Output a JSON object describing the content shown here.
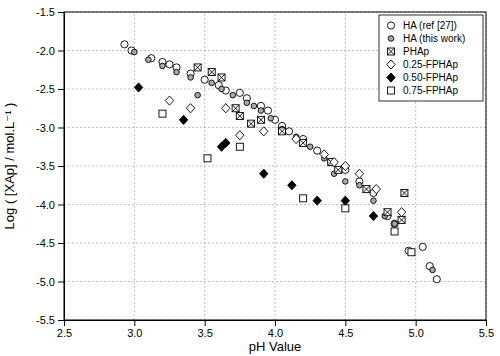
{
  "chart_data": {
    "type": "scatter",
    "x_label": "pH Value",
    "y_label": "Log ( [XAp] / mol.L⁻¹ )",
    "xlim": [
      2.5,
      5.5
    ],
    "ylim": [
      -5.5,
      -1.5
    ],
    "xticks": [
      2.5,
      {
        "value": 3,
        "label": "3.0"
      },
      3.5,
      {
        "value": 4,
        "label": "4.0"
      },
      4.5,
      {
        "value": 5,
        "label": "5.0"
      },
      5.5
    ],
    "yticks": [
      -5.5,
      {
        "value": -5,
        "label": "-5.0"
      },
      -4.5,
      {
        "value": -4,
        "label": "-4.0"
      },
      -3.5,
      {
        "value": -3,
        "label": "-3.0"
      },
      -2.5,
      {
        "value": -2,
        "label": "-2.0"
      },
      -1.5
    ],
    "grid": true,
    "legend": "upper right",
    "series": [
      {
        "name": "HA (ref [27])",
        "color": "#ffffff",
        "marker": "circle",
        "x": [
          2.93,
          2.98,
          3.12,
          3.2,
          3.25,
          3.3,
          3.4,
          3.5,
          3.6,
          3.65,
          3.75,
          3.8,
          3.9,
          3.95,
          4.0,
          4.05,
          4.1,
          4.2,
          4.3,
          4.4,
          4.5,
          4.6,
          4.7,
          4.8,
          4.85,
          4.95,
          5.05,
          5.1,
          5.15
        ],
        "values": [
          -1.92,
          -2.0,
          -2.1,
          -2.15,
          -2.18,
          -2.22,
          -2.3,
          -2.38,
          -2.45,
          -2.52,
          -2.55,
          -2.62,
          -2.72,
          -2.78,
          -2.9,
          -2.98,
          -3.05,
          -3.15,
          -3.3,
          -3.45,
          -3.55,
          -3.7,
          -3.85,
          -4.15,
          -4.25,
          -4.6,
          -4.55,
          -4.8,
          -4.97
        ]
      },
      {
        "name": "HA (this work)",
        "color": "#aaaaaa",
        "marker": "dot",
        "x": [
          3.0,
          3.1,
          3.2,
          3.3,
          3.4,
          3.45,
          3.55,
          3.62,
          3.7,
          3.8,
          3.85,
          3.9,
          3.97,
          4.05,
          4.15,
          4.25,
          4.35,
          4.42,
          4.5,
          4.6,
          4.7,
          4.78,
          4.85,
          5.12
        ],
        "values": [
          -2.02,
          -2.12,
          -2.2,
          -2.28,
          -2.35,
          -2.58,
          -2.42,
          -2.5,
          -2.58,
          -2.68,
          -2.72,
          -2.78,
          -2.88,
          -3.02,
          -3.12,
          -3.25,
          -3.4,
          -3.6,
          -3.7,
          -3.75,
          -3.95,
          -4.15,
          -4.25,
          -4.85
        ]
      },
      {
        "name": "PHAp",
        "color": "#ffffff",
        "marker": "square-cross",
        "x": [
          3.45,
          3.55,
          3.62,
          3.72,
          3.75,
          3.83,
          3.9,
          4.05,
          4.2,
          4.4,
          4.45,
          4.65,
          4.8,
          4.9,
          4.92
        ],
        "values": [
          -2.22,
          -2.28,
          -2.35,
          -2.75,
          -2.85,
          -2.95,
          -2.9,
          -3.05,
          -3.2,
          -3.45,
          -3.55,
          -3.8,
          -4.1,
          -4.2,
          -3.85
        ]
      },
      {
        "name": "0.25-FPHAp",
        "color": "#ffffff",
        "marker": "diamond",
        "x": [
          3.25,
          3.4,
          3.65,
          3.75,
          3.92,
          4.15,
          4.35,
          4.42,
          4.5,
          4.6,
          4.72,
          4.9
        ],
        "values": [
          -2.65,
          -2.75,
          -2.75,
          -3.1,
          -3.05,
          -3.15,
          -3.35,
          -3.45,
          -3.5,
          -3.6,
          -3.8,
          -4.1
        ]
      },
      {
        "name": "0.50-FPHAp",
        "color": "#000000",
        "marker": "diamond",
        "x": [
          3.03,
          3.35,
          3.62,
          3.65,
          3.92,
          4.12,
          4.3,
          4.5,
          4.7
        ],
        "values": [
          -2.48,
          -2.9,
          -3.25,
          -3.2,
          -3.6,
          -3.75,
          -3.95,
          -3.95,
          -4.15
        ]
      },
      {
        "name": "0.75-FPHAp",
        "color": "#ffffff",
        "marker": "square",
        "x": [
          3.2,
          3.52,
          3.75,
          4.2,
          4.5,
          4.85,
          4.97
        ],
        "values": [
          -2.82,
          -3.4,
          -3.25,
          -3.92,
          -4.05,
          -4.35,
          -4.62
        ]
      }
    ]
  }
}
